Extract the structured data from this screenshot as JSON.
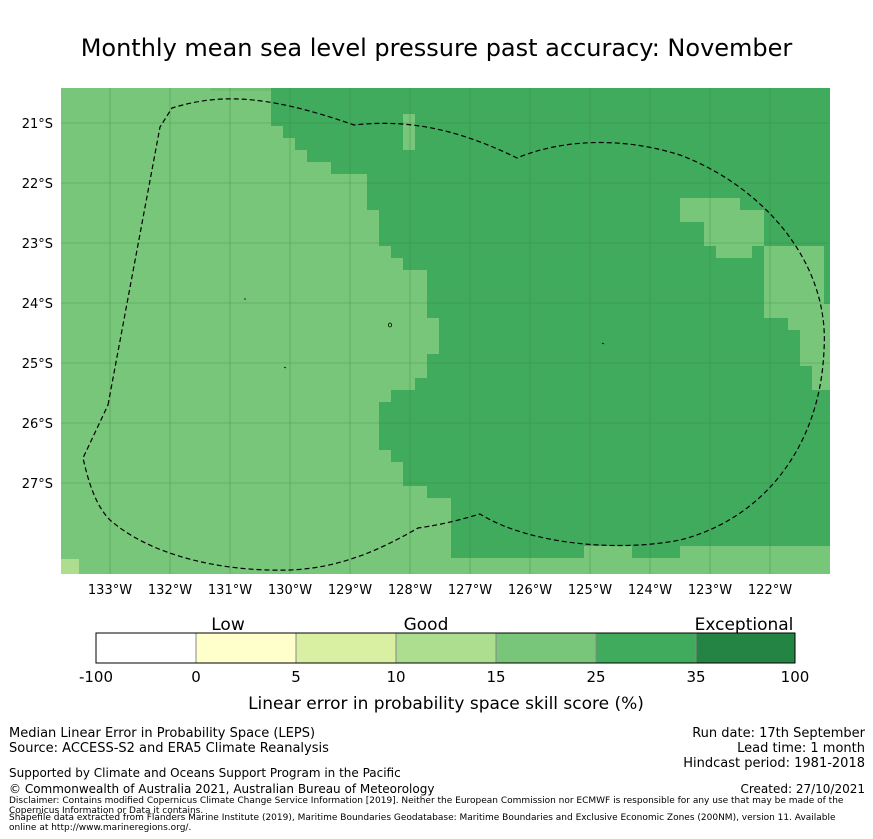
{
  "title": "Monthly mean sea level pressure past accuracy: November",
  "map": {
    "lat_labels": [
      "21°S",
      "22°S",
      "23°S",
      "24°S",
      "25°S",
      "26°S",
      "27°S"
    ],
    "lon_labels": [
      "133°W",
      "132°W",
      "131°W",
      "130°W",
      "129°W",
      "128°W",
      "127°W",
      "126°W",
      "125°W",
      "124°W",
      "123°W",
      "122°W"
    ],
    "zone_colors": {
      "c15_25": "#78c679",
      "c25_35": "#41ab5d",
      "c10_15": "#addd8e"
    }
  },
  "legend": {
    "categories": [
      "Low",
      "Good",
      "Exceptional"
    ],
    "ticks": [
      "-100",
      "0",
      "5",
      "10",
      "15",
      "25",
      "35",
      "100"
    ],
    "colors": [
      "#ffffff",
      "#ffffcc",
      "#d9f0a3",
      "#addd8e",
      "#78c679",
      "#41ab5d",
      "#238443"
    ],
    "title": "Linear error in probability space skill score (%)"
  },
  "footer": {
    "left1": "Median Linear Error in Probability Space (LEPS)",
    "left2": "Source: ACCESS-S2 and ERA5 Climate Reanalysis",
    "support": "Supported by Climate and Oceans Support Program in the Pacific",
    "copyright": "© Commonwealth of Australia 2021, Australian Bureau of Meteorology",
    "disclaimer1": "Disclaimer: Contains modified Copernicus Climate Change Service Information [2019]. Neither the European Commission nor ECMWF is responsible for any use that may be made of the",
    "disclaimer2": "Copernicus Information or Data it contains.",
    "shapefile1": "Shapefile data extracted from Flanders Marine Institute (2019), Maritime Boundaries Geodatabase: Maritime Boundaries and Exclusive Economic Zones (200NM), version 11. Available",
    "shapefile2": "online at http://www.marineregions.org/.",
    "run_date": "Run date: 17th September",
    "lead_time": "Lead time: 1 month",
    "hindcast": "Hindcast period: 1981-2018",
    "created": "Created: 27/10/2021"
  }
}
